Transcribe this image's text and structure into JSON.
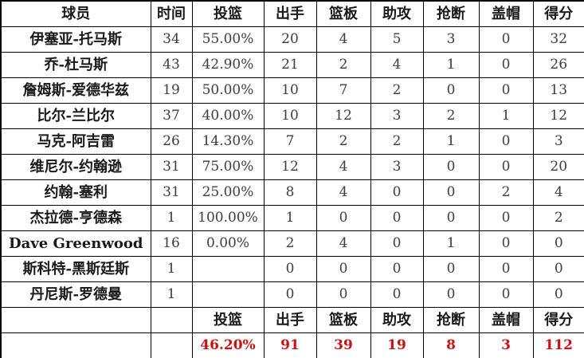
{
  "chart_data": {
    "type": "table",
    "title": "",
    "columns": [
      "球员",
      "时间",
      "投篮",
      "出手",
      "篮板",
      "助攻",
      "抢断",
      "盖帽",
      "得分"
    ],
    "column_keys": [
      "player",
      "minutes",
      "fg-pct",
      "attempts",
      "rebounds",
      "assists",
      "steals",
      "blocks",
      "points"
    ],
    "rows": [
      {
        "type": "player",
        "cells": [
          "伊塞亚-托马斯",
          "34",
          "55.00%",
          "20",
          "4",
          "5",
          "3",
          "0",
          "32"
        ]
      },
      {
        "type": "player",
        "cells": [
          "乔-杜马斯",
          "43",
          "42.90%",
          "21",
          "2",
          "4",
          "1",
          "0",
          "26"
        ]
      },
      {
        "type": "player",
        "cells": [
          "詹姆斯-爱德华兹",
          "19",
          "50.00%",
          "10",
          "7",
          "2",
          "0",
          "0",
          "13"
        ]
      },
      {
        "type": "player",
        "cells": [
          "比尔-兰比尔",
          "37",
          "40.00%",
          "10",
          "12",
          "3",
          "2",
          "1",
          "12"
        ]
      },
      {
        "type": "player",
        "cells": [
          "马克-阿吉雷",
          "26",
          "14.30%",
          "7",
          "2",
          "2",
          "1",
          "0",
          "3"
        ]
      },
      {
        "type": "player",
        "cells": [
          "维尼尔-约翰逊",
          "31",
          "75.00%",
          "12",
          "4",
          "3",
          "0",
          "0",
          "20"
        ]
      },
      {
        "type": "player",
        "cells": [
          "约翰-塞利",
          "31",
          "25.00%",
          "8",
          "4",
          "0",
          "0",
          "2",
          "4"
        ]
      },
      {
        "type": "player",
        "cells": [
          "杰拉德-亨德森",
          "1",
          "100.00%",
          "1",
          "0",
          "0",
          "0",
          "0",
          "2"
        ]
      },
      {
        "type": "player",
        "cells": [
          "Dave Greenwood",
          "16",
          "0.00%",
          "2",
          "4",
          "0",
          "1",
          "0",
          "0"
        ]
      },
      {
        "type": "player",
        "cells": [
          "斯科特-黑斯廷斯",
          "1",
          "",
          "0",
          "0",
          "0",
          "0",
          "0",
          "0"
        ]
      },
      {
        "type": "player",
        "cells": [
          "丹尼斯-罗德曼",
          "1",
          "",
          "0",
          "0",
          "0",
          "0",
          "0",
          "0"
        ]
      },
      {
        "type": "labels",
        "cells": [
          "",
          "",
          "投篮",
          "出手",
          "篮板",
          "助攻",
          "抢断",
          "盖帽",
          "得分"
        ]
      },
      {
        "type": "totals",
        "cells": [
          "",
          "",
          "46.20%",
          "91",
          "39",
          "19",
          "8",
          "3",
          "112"
        ]
      }
    ],
    "totals": {
      "fg_pct": "46.20%",
      "attempts": 91,
      "rebounds": 39,
      "assists": 19,
      "steals": 8,
      "blocks": 3,
      "points": 112
    }
  },
  "colors": {
    "background": "#ffffff",
    "border": "#000000",
    "header_text": "#1a1a1a",
    "number_text": "#3d3d3d",
    "totals_text": "#cc1111"
  }
}
